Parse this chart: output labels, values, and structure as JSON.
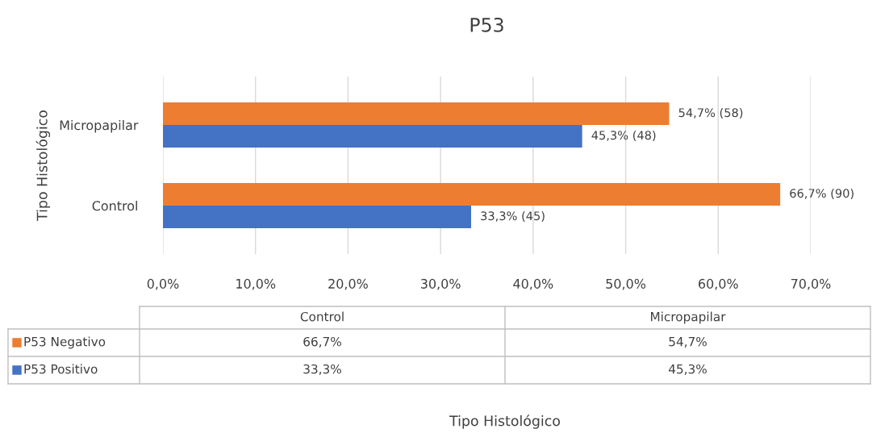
{
  "chart_data": {
    "type": "bar",
    "orientation": "horizontal",
    "title": "P53",
    "ylabel": "Tipo Histológico",
    "categories": [
      "Micropapilar",
      "Control"
    ],
    "series": [
      {
        "name": "P53 Negativo",
        "color": "#ed7d31",
        "values": [
          54.7,
          66.7
        ],
        "value_labels": [
          "54,7% (58)",
          "66,7% (90)"
        ]
      },
      {
        "name": "P53 Positivo",
        "color": "#4472c4",
        "values": [
          45.3,
          33.3
        ],
        "value_labels": [
          "45,3% (48)",
          "33,3% (45)"
        ]
      }
    ],
    "xlim": [
      0,
      70
    ],
    "xticks": [
      {
        "value": 0,
        "label": "0,0%"
      },
      {
        "value": 10,
        "label": "10,0%"
      },
      {
        "value": 20,
        "label": "20,0%"
      },
      {
        "value": 30,
        "label": "30,0%"
      },
      {
        "value": 40,
        "label": "40,0%"
      },
      {
        "value": 50,
        "label": "50,0%"
      },
      {
        "value": 60,
        "label": "60,0%"
      },
      {
        "value": 70,
        "label": "70,0%"
      }
    ],
    "grid": "x",
    "legend": "bottom",
    "annotations": [
      "66,7%",
      "54,7%",
      "33,3%",
      "45,3%",
      "Tipo Histológico"
    ]
  }
}
